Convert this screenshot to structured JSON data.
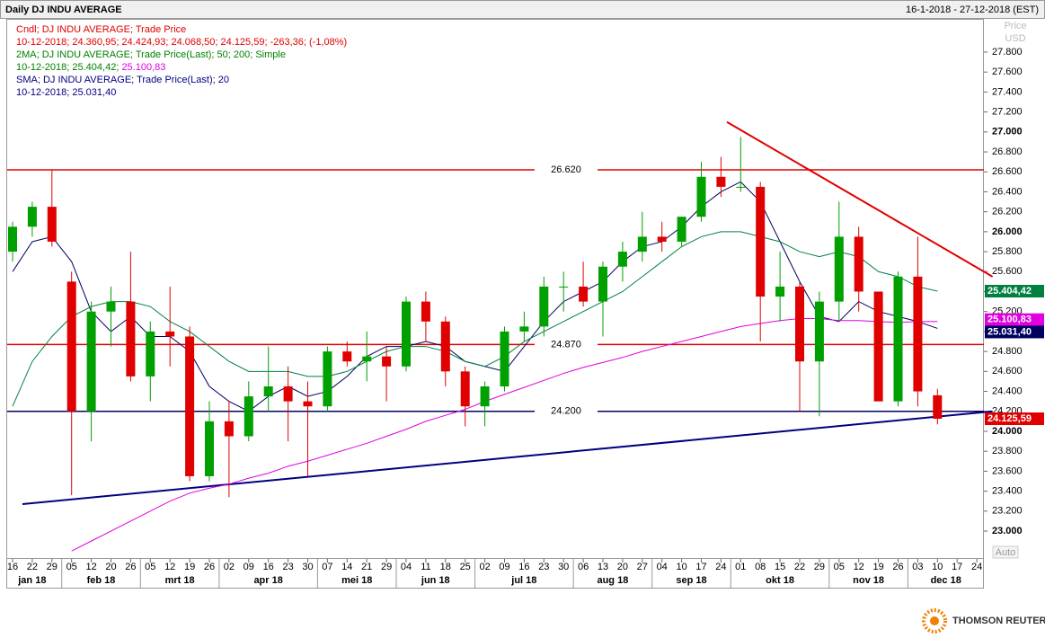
{
  "header": {
    "title": "Daily DJ INDU AVERAGE",
    "range": "16-1-2018 - 27-12-2018 (EST)"
  },
  "legend": [
    {
      "text": "Cndl; DJ INDU AVERAGE; Trade Price",
      "color": "#e00000"
    },
    {
      "text": "10-12-2018; 24.360,95; 24.424,93; 24.068,50; 24.125,59; -263,36; (-1,08%)",
      "color": "#e00000"
    },
    {
      "text": "2MA; DJ INDU AVERAGE; Trade Price(Last);  50;  200; Simple",
      "color": "#008000"
    },
    {
      "text": "10-12-2018; 25.404,42; ",
      "color": "#008000",
      "extra": "25.100,83",
      "extra_color": "#e000e0"
    },
    {
      "text": "SMA; DJ INDU AVERAGE; Trade Price(Last);  20",
      "color": "#000080"
    },
    {
      "text": "10-12-2018; 25.031,40",
      "color": "#000080"
    }
  ],
  "axis_caption": [
    "Price",
    "USD"
  ],
  "auto_label": "Auto",
  "footer": "THOMSON REUTERS",
  "chart_data": {
    "type": "candlestick",
    "categories": [
      "16",
      "22",
      "29",
      "05",
      "12",
      "20",
      "26",
      "05",
      "12",
      "19",
      "26",
      "02",
      "09",
      "16",
      "23",
      "30",
      "07",
      "14",
      "21",
      "29",
      "04",
      "11",
      "18",
      "25",
      "02",
      "09",
      "16",
      "23",
      "30",
      "06",
      "13",
      "20",
      "27",
      "04",
      "10",
      "17",
      "24",
      "01",
      "08",
      "15",
      "22",
      "29",
      "05",
      "12",
      "19",
      "26",
      "03",
      "10",
      "17",
      "24"
    ],
    "months": [
      {
        "label": "jan 18",
        "start": 0
      },
      {
        "label": "feb 18",
        "start": 3
      },
      {
        "label": "mrt 18",
        "start": 7
      },
      {
        "label": "apr 18",
        "start": 11
      },
      {
        "label": "mei 18",
        "start": 16
      },
      {
        "label": "jun 18",
        "start": 20
      },
      {
        "label": "jul 18",
        "start": 24
      },
      {
        "label": "aug 18",
        "start": 29
      },
      {
        "label": "sep 18",
        "start": 33
      },
      {
        "label": "okt 18",
        "start": 37
      },
      {
        "label": "nov 18",
        "start": 42
      },
      {
        "label": "dec 18",
        "start": 46
      }
    ],
    "open": [
      25800,
      26050,
      26250,
      25500,
      24200,
      25200,
      25300,
      24550,
      25000,
      24950,
      23550,
      24100,
      23950,
      24350,
      24450,
      24300,
      24250,
      24800,
      24700,
      24750,
      24650,
      25300,
      25100,
      24600,
      24250,
      24450,
      25000,
      25050,
      25450,
      25450,
      25300,
      25650,
      25800,
      25950,
      25900,
      26150,
      26550,
      26450,
      26450,
      25350,
      25450,
      24700,
      25300,
      25950,
      25400,
      24300,
      25550,
      24360.95,
      null,
      null
    ],
    "high": [
      26100,
      26300,
      26620,
      25600,
      25300,
      25450,
      25800,
      25100,
      25450,
      25050,
      24300,
      24300,
      24500,
      24850,
      24650,
      24500,
      24850,
      24900,
      25000,
      24850,
      25350,
      25400,
      25150,
      24650,
      24500,
      25050,
      25200,
      25550,
      25600,
      25700,
      25700,
      25900,
      26200,
      26100,
      26150,
      26700,
      26750,
      26950,
      26500,
      25800,
      25500,
      25400,
      26300,
      26050,
      25400,
      25600,
      25950,
      24424.93,
      null,
      null
    ],
    "low": [
      25700,
      25950,
      25850,
      23360,
      23900,
      24850,
      24500,
      24300,
      24650,
      23500,
      23500,
      23340,
      23900,
      24200,
      23900,
      23550,
      24200,
      24650,
      24500,
      24300,
      24600,
      24900,
      24450,
      24050,
      24050,
      24400,
      24900,
      24950,
      25200,
      25250,
      24950,
      25500,
      25700,
      25800,
      25850,
      26100,
      26350,
      26400,
      24900,
      25100,
      24200,
      24150,
      25100,
      25200,
      24300,
      24250,
      24250,
      24068.5,
      null,
      null
    ],
    "close": [
      26050,
      26250,
      25900,
      24200,
      25200,
      25300,
      24550,
      25000,
      24950,
      23550,
      24100,
      23950,
      24350,
      24450,
      24300,
      24250,
      24800,
      24700,
      24750,
      24650,
      25300,
      25100,
      24600,
      24250,
      24450,
      25000,
      25050,
      25450,
      25450,
      25300,
      25650,
      25800,
      25950,
      25900,
      26150,
      26550,
      26450,
      26450,
      25350,
      25450,
      24700,
      25300,
      25950,
      25400,
      24300,
      25550,
      24400,
      24125.59,
      null,
      null
    ],
    "up_color": "#00a000",
    "down_color": "#e00000",
    "lines": [
      {
        "name": "SMA 20",
        "color": "#000060",
        "values": [
          25600,
          25900,
          25950,
          25700,
          25200,
          25000,
          25150,
          24950,
          24950,
          24800,
          24450,
          24300,
          24200,
          24350,
          24450,
          24350,
          24400,
          24550,
          24750,
          24850,
          24850,
          24900,
          24850,
          24700,
          24650,
          24600,
          24850,
          25100,
          25300,
          25400,
          25500,
          25700,
          25850,
          25900,
          26050,
          26250,
          26400,
          26500,
          26300,
          25900,
          25500,
          25150,
          25100,
          25300,
          25200,
          25150,
          25100,
          25031.4,
          null,
          null
        ]
      },
      {
        "name": "MA 50",
        "color": "#008040",
        "values": [
          24250,
          24700,
          24950,
          25150,
          25250,
          25300,
          25300,
          25250,
          25100,
          25000,
          24850,
          24700,
          24600,
          24600,
          24600,
          24550,
          24550,
          24600,
          24700,
          24800,
          24850,
          24850,
          24800,
          24700,
          24650,
          24750,
          24900,
          25000,
          25100,
          25200,
          25300,
          25400,
          25550,
          25700,
          25850,
          25950,
          26000,
          26000,
          25950,
          25900,
          25800,
          25750,
          25800,
          25750,
          25600,
          25550,
          25450,
          25404.42,
          null,
          null
        ]
      },
      {
        "name": "MA 200",
        "color": "#e000e0",
        "values": [
          null,
          null,
          null,
          22800,
          22900,
          23000,
          23100,
          23200,
          23300,
          23380,
          23430,
          23470,
          23530,
          23580,
          23650,
          23700,
          23760,
          23820,
          23880,
          23950,
          24020,
          24100,
          24160,
          24220,
          24300,
          24370,
          24440,
          24510,
          24580,
          24640,
          24690,
          24740,
          24800,
          24850,
          24900,
          24950,
          25000,
          25050,
          25080,
          25110,
          25130,
          25130,
          25110,
          25110,
          25100,
          25090,
          25100,
          25100.83,
          null,
          null
        ]
      }
    ],
    "levels": [
      {
        "value": 26620,
        "label": "26.620",
        "color": "#e00000"
      },
      {
        "value": 24870,
        "label": "24.870",
        "color": "#e00000"
      },
      {
        "value": 24200,
        "label": "24.200",
        "color": "#000060"
      }
    ],
    "trendlines": [
      {
        "color": "#e00000",
        "x": [
          36.3,
          49.8
        ],
        "y": [
          27100,
          25550
        ]
      },
      {
        "color": "#000080",
        "x": [
          0.5,
          49.8
        ],
        "y": [
          23270,
          24200
        ]
      }
    ],
    "tags": [
      {
        "value": 25404.42,
        "label": "25.404,42",
        "color": "#008040"
      },
      {
        "value": 25100.83,
        "label": "25.100,83",
        "color": "#e000e0"
      },
      {
        "value": 25031.4,
        "label": "25.031,40",
        "color": "#000060"
      },
      {
        "value": 24125.59,
        "label": "24.125,59",
        "color": "#e00000"
      }
    ],
    "ylim": [
      22730,
      28124
    ],
    "yticks": [
      {
        "value": 23000,
        "label": "23.000"
      },
      {
        "value": 23200,
        "label": "23.200"
      },
      {
        "value": 23400,
        "label": "23.400"
      },
      {
        "value": 23600,
        "label": "23.600"
      },
      {
        "value": 23800,
        "label": "23.800"
      },
      {
        "value": 24000,
        "label": "24.000"
      },
      {
        "value": 24200,
        "label": "24.200"
      },
      {
        "value": 24400,
        "label": "24.400"
      },
      {
        "value": 24600,
        "label": "24.600"
      },
      {
        "value": 24800,
        "label": "24.800"
      },
      {
        "value": 25000,
        "label": "25.000"
      },
      {
        "value": 25200,
        "label": "25.200"
      },
      {
        "value": 25400,
        "label": "25.400"
      },
      {
        "value": 25600,
        "label": "25.600"
      },
      {
        "value": 25800,
        "label": "25.800"
      },
      {
        "value": 26000,
        "label": "26.000"
      },
      {
        "value": 26200,
        "label": "26.200"
      },
      {
        "value": 26400,
        "label": "26.400"
      },
      {
        "value": 26600,
        "label": "26.600"
      },
      {
        "value": 26800,
        "label": "26.800"
      },
      {
        "value": 27000,
        "label": "27.000"
      },
      {
        "value": 27200,
        "label": "27.200"
      },
      {
        "value": 27400,
        "label": "27.400"
      },
      {
        "value": 27600,
        "label": "27.600"
      },
      {
        "value": 27800,
        "label": "27.800"
      }
    ]
  }
}
